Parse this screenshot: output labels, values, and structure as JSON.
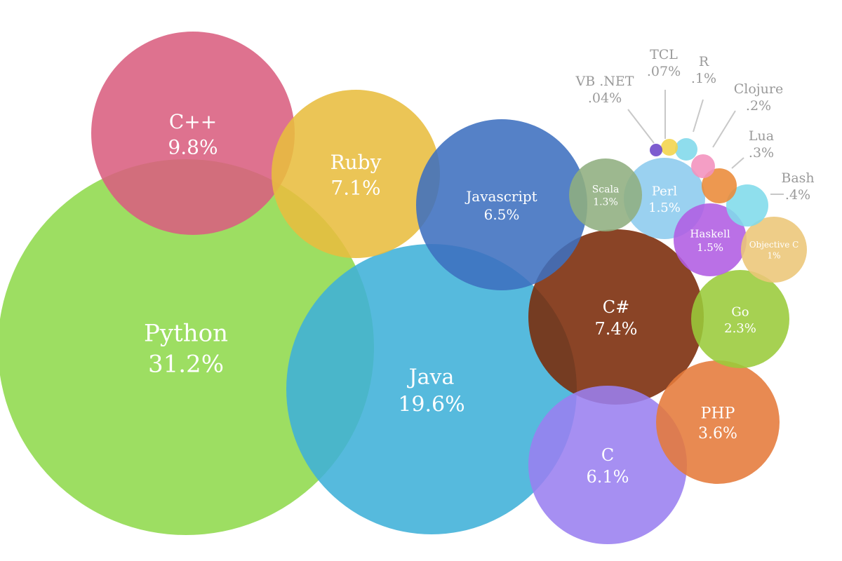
{
  "chart_data": {
    "type": "bubble",
    "unit": "%",
    "series": [
      {
        "name": "Python",
        "value": 31.2,
        "label": "31.2%",
        "color": "#8fd94c"
      },
      {
        "name": "Java",
        "value": 19.6,
        "label": "19.6%",
        "color": "#3fb0d8"
      },
      {
        "name": "C++",
        "value": 9.8,
        "label": "9.8%",
        "color": "#d95f80"
      },
      {
        "name": "C#",
        "value": 7.4,
        "label": "7.4%",
        "color": "#7a2a08"
      },
      {
        "name": "Ruby",
        "value": 7.1,
        "label": "7.1%",
        "color": "#e8bd3f"
      },
      {
        "name": "Javascript",
        "value": 6.5,
        "label": "6.5%",
        "color": "#3d6fbf"
      },
      {
        "name": "C",
        "value": 6.1,
        "label": "6.1%",
        "color": "#9a7ff0"
      },
      {
        "name": "PHP",
        "value": 3.6,
        "label": "3.6%",
        "color": "#e57a3a"
      },
      {
        "name": "Go",
        "value": 2.3,
        "label": "2.3%",
        "color": "#9acb3a"
      },
      {
        "name": "Perl",
        "value": 1.5,
        "label": "1.5%",
        "color": "#8ccbee"
      },
      {
        "name": "Haskell",
        "value": 1.5,
        "label": "1.5%",
        "color": "#b05ce2"
      },
      {
        "name": "Scala",
        "value": 1.3,
        "label": "1.3%",
        "color": "#8fae80"
      },
      {
        "name": "Objective C",
        "value": 1,
        "label": "1%",
        "color": "#ecc678"
      },
      {
        "name": "Bash",
        "value": 0.4,
        "label": ".4%",
        "color": "#7fdbea"
      },
      {
        "name": "Lua",
        "value": 0.3,
        "label": ".3%",
        "color": "#ea8a38"
      },
      {
        "name": "Clojure",
        "value": 0.2,
        "label": ".2%",
        "color": "#f291bd"
      },
      {
        "name": "R",
        "value": 0.1,
        "label": ".1%",
        "color": "#80d8ea"
      },
      {
        "name": "TCL",
        "value": 0.07,
        "label": ".07%",
        "color": "#f2d44a"
      },
      {
        "name": "VB .NET",
        "value": 0.04,
        "label": ".04%",
        "color": "#6b46c8"
      }
    ]
  }
}
